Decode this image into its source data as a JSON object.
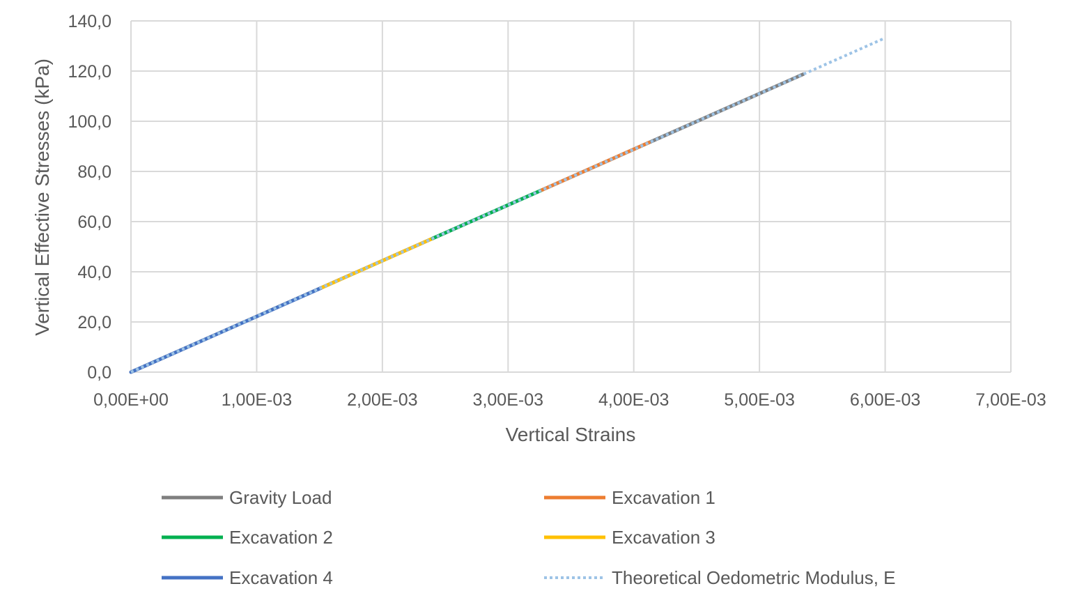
{
  "chart_data": {
    "type": "line",
    "xlabel": "Vertical Strains",
    "ylabel": "Vertical Effective Stresses (kPa)",
    "xlim": [
      0,
      0.007
    ],
    "ylim": [
      0,
      140
    ],
    "x_ticks": [
      "0,00E+00",
      "1,00E-03",
      "2,00E-03",
      "3,00E-03",
      "4,00E-03",
      "5,00E-03",
      "6,00E-03",
      "7,00E-03"
    ],
    "y_ticks": [
      "0,0",
      "20,0",
      "40,0",
      "60,0",
      "80,0",
      "100,0",
      "120,0",
      "140,0"
    ],
    "grid": true,
    "legend_position": "bottom",
    "series": [
      {
        "name": "Gravity Load",
        "color": "#7f7f7f",
        "style": "solid",
        "x": [
          0,
          0.00535
        ],
        "y": [
          0,
          118.8
        ]
      },
      {
        "name": "Excavation 1",
        "color": "#ed7d31",
        "style": "solid",
        "x": [
          0.00327,
          0.00412
        ],
        "y": [
          72.6,
          91.5
        ]
      },
      {
        "name": "Excavation 2",
        "color": "#00b050",
        "style": "solid",
        "x": [
          0.0024,
          0.00327
        ],
        "y": [
          53.3,
          72.6
        ]
      },
      {
        "name": "Excavation 3",
        "color": "#ffc000",
        "style": "solid",
        "x": [
          0.00152,
          0.0024
        ],
        "y": [
          33.7,
          53.3
        ]
      },
      {
        "name": "Excavation 4",
        "color": "#4472c4",
        "style": "solid",
        "x": [
          0,
          0.00152
        ],
        "y": [
          0,
          33.7
        ]
      },
      {
        "name": "Theoretical Oedometric Modulus, E",
        "color": "#9dc3e6",
        "style": "dotted",
        "x": [
          0,
          0.006
        ],
        "y": [
          0,
          133.2
        ]
      }
    ]
  }
}
